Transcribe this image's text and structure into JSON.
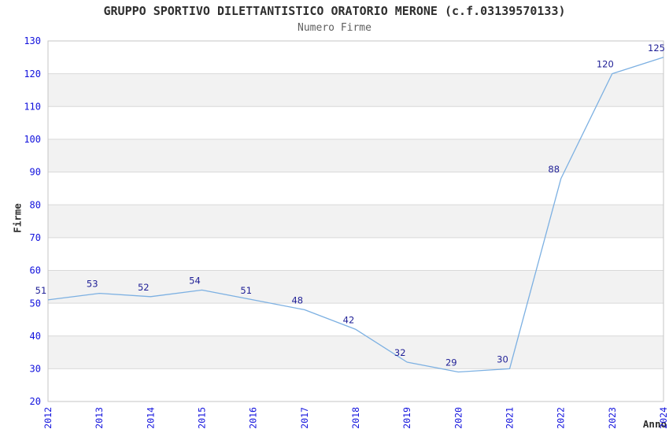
{
  "chart_data": {
    "type": "line",
    "title": "GRUPPO SPORTIVO DILETTANTISTICO ORATORIO MERONE (c.f.03139570133)",
    "subtitle": "Numero Firme",
    "xlabel": "Anno",
    "ylabel": "Firme",
    "categories": [
      "2012",
      "2013",
      "2014",
      "2015",
      "2016",
      "2017",
      "2018",
      "2019",
      "2020",
      "2021",
      "2022",
      "2023",
      "2024"
    ],
    "series": [
      {
        "name": "Numero Firme",
        "values": [
          51,
          53,
          52,
          54,
          51,
          48,
          42,
          32,
          29,
          30,
          88,
          120,
          125
        ]
      }
    ],
    "ylim": [
      20,
      130
    ],
    "ytick_step": 10,
    "yticks": [
      20,
      30,
      40,
      50,
      60,
      70,
      80,
      90,
      100,
      110,
      120,
      130
    ],
    "grid": "horizontal-bands-alternating",
    "legend": "none",
    "point_labels": true,
    "colors": {
      "line": "#7cb0e2",
      "point_label": "#1f1f96",
      "tick_label": "#1212dd",
      "band": "#f2f2f2",
      "grid_line": "#d9d9d9",
      "border": "#c6c6c6",
      "title_text": "#2e2e2e",
      "subtitle_text": "#5f5f5f",
      "axis_title_text": "#2e2e2e",
      "background": "#ffffff"
    }
  }
}
